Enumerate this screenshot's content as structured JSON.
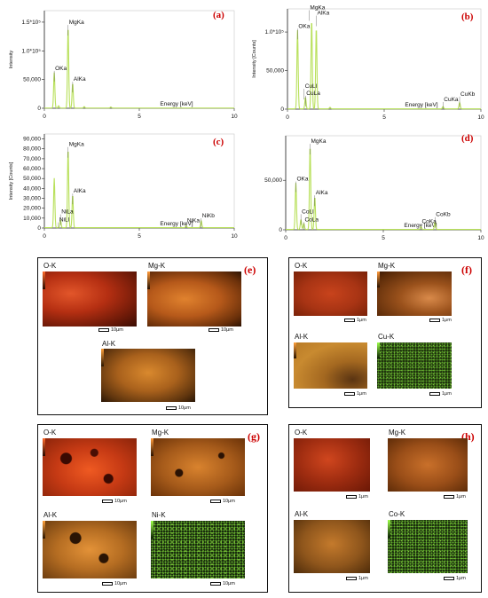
{
  "chart_data": [
    {
      "type": "line",
      "panel": "(a)",
      "xlabel": "Energy [keV]",
      "ylabel": "Intensity",
      "xlim": [
        0,
        10
      ],
      "ylim": [
        0,
        170000
      ],
      "yticks": [
        {
          "v": 0,
          "t": "0"
        },
        {
          "v": 50000,
          "t": "50,000"
        },
        {
          "v": 100000,
          "t": "1.0*10⁵"
        },
        {
          "v": 150000,
          "t": "1.5*10⁵"
        }
      ],
      "xticks": [
        {
          "v": 0,
          "t": "0"
        },
        {
          "v": 5,
          "t": "5"
        },
        {
          "v": 10,
          "t": "10"
        }
      ],
      "peaks": [
        [
          0.52,
          62000
        ],
        [
          1.25,
          142000
        ],
        [
          1.49,
          43000
        ],
        [
          0.75,
          4000
        ],
        [
          2.1,
          2500
        ],
        [
          3.5,
          1800
        ]
      ],
      "labels": [
        {
          "t": "MgKa",
          "x": 1.25,
          "y": 142000
        },
        {
          "t": "OKa",
          "x": 0.52,
          "y": 62000
        },
        {
          "t": "AlKa",
          "x": 1.49,
          "y": 43000
        }
      ]
    },
    {
      "type": "line",
      "panel": "(b)",
      "xlabel": "Energy [keV]",
      "ylabel": "Intensity [Counts]",
      "xlim": [
        0,
        10
      ],
      "ylim": [
        0,
        130000
      ],
      "yticks": [
        {
          "v": 0,
          "t": "0"
        },
        {
          "v": 50000,
          "t": "50,000"
        },
        {
          "v": 100000,
          "t": "1.0*10⁵"
        }
      ],
      "xticks": [
        {
          "v": 0,
          "t": "0"
        },
        {
          "v": 5,
          "t": "5"
        },
        {
          "v": 10,
          "t": "10"
        }
      ],
      "peaks": [
        [
          0.52,
          102000
        ],
        [
          0.93,
          15000
        ],
        [
          1.25,
          116000
        ],
        [
          1.49,
          106000
        ],
        [
          8.04,
          3000
        ],
        [
          8.9,
          8000
        ],
        [
          2.2,
          2000
        ]
      ],
      "labels": [
        {
          "t": "MgKa",
          "x": 1.12,
          "y": 126000
        },
        {
          "t": "AlKa",
          "x": 1.49,
          "y": 119000
        },
        {
          "t": "OKa",
          "x": 0.52,
          "y": 102000
        },
        {
          "t": "CuLl",
          "x": 0.86,
          "y": 24000
        },
        {
          "t": "CuLa",
          "x": 0.93,
          "y": 15000
        },
        {
          "t": "CuKa",
          "x": 8.04,
          "y": 7000
        },
        {
          "t": "CuKb",
          "x": 8.9,
          "y": 14000
        }
      ]
    },
    {
      "type": "line",
      "panel": "(c)",
      "xlabel": "Energy [keV]",
      "ylabel": "Intensity [Counts]",
      "xlim": [
        0,
        10
      ],
      "ylim": [
        0,
        95000
      ],
      "yticks": [
        {
          "v": 0,
          "t": "0"
        },
        {
          "v": 10000,
          "t": "10,000"
        },
        {
          "v": 20000,
          "t": "20,000"
        },
        {
          "v": 30000,
          "t": "30,000"
        },
        {
          "v": 40000,
          "t": "40,000"
        },
        {
          "v": 50000,
          "t": "50,000"
        },
        {
          "v": 60000,
          "t": "60,000"
        },
        {
          "v": 70000,
          "t": "70,000"
        },
        {
          "v": 80000,
          "t": "80,000"
        },
        {
          "v": 90000,
          "t": "90,000"
        }
      ],
      "xticks": [
        {
          "v": 0,
          "t": "0"
        },
        {
          "v": 5,
          "t": "5"
        },
        {
          "v": 10,
          "t": "10"
        }
      ],
      "peaks": [
        [
          0.52,
          50000
        ],
        [
          0.85,
          8000
        ],
        [
          1.25,
          80000
        ],
        [
          1.49,
          33000
        ],
        [
          7.47,
          2000
        ],
        [
          8.26,
          7000
        ]
      ],
      "labels": [
        {
          "t": "MgKa",
          "x": 1.25,
          "y": 80000
        },
        {
          "t": "AlKa",
          "x": 1.49,
          "y": 33000
        },
        {
          "t": "NiLa",
          "x": 0.85,
          "y": 12000
        },
        {
          "t": "NiLl",
          "x": 0.74,
          "y": 4000
        },
        {
          "t": "NiKa",
          "x": 7.47,
          "y": 3000
        },
        {
          "t": "NiKb",
          "x": 8.26,
          "y": 8000
        }
      ]
    },
    {
      "type": "line",
      "panel": "(d)",
      "xlabel": "Energy [keV]",
      "ylabel": "",
      "xlim": [
        0,
        10
      ],
      "ylim": [
        0,
        95000
      ],
      "yticks": [
        {
          "v": 0,
          "t": "0"
        },
        {
          "v": 50000,
          "t": "50,000"
        }
      ],
      "xticks": [
        {
          "v": 0,
          "t": "0"
        },
        {
          "v": 5,
          "t": "5"
        },
        {
          "v": 10,
          "t": "10"
        }
      ],
      "peaks": [
        [
          0.52,
          47000
        ],
        [
          0.78,
          10000
        ],
        [
          0.93,
          6000
        ],
        [
          1.25,
          85000
        ],
        [
          1.49,
          33000
        ],
        [
          6.93,
          3000
        ],
        [
          7.65,
          8000
        ]
      ],
      "labels": [
        {
          "t": "MgKa",
          "x": 1.25,
          "y": 85000
        },
        {
          "t": "OKa",
          "x": 0.52,
          "y": 47000
        },
        {
          "t": "AlKa",
          "x": 1.49,
          "y": 33000
        },
        {
          "t": "CoLl",
          "x": 0.78,
          "y": 14000
        },
        {
          "t": "CoLa",
          "x": 0.93,
          "y": 6000
        },
        {
          "t": "CoKa",
          "x": 6.93,
          "y": 4000
        },
        {
          "t": "CoKb",
          "x": 7.65,
          "y": 11000
        }
      ]
    }
  ],
  "maps": {
    "e": {
      "letter": "(e)",
      "o": "O-K",
      "mg": "Mg-K",
      "al": "Al-K",
      "scale": "10μm"
    },
    "f": {
      "letter": "(f)",
      "o": "O-K",
      "mg": "Mg-K",
      "al": "Al-K",
      "x": "Cu-K",
      "scale": "1μm"
    },
    "g": {
      "letter": "(g)",
      "o": "O-K",
      "mg": "Mg-K",
      "al": "Al-K",
      "x": "Ni-K",
      "scale": "10μm"
    },
    "h": {
      "letter": "(h)",
      "o": "O-K",
      "mg": "Mg-K",
      "al": "Al-K",
      "x": "Co-K",
      "scale": "1μm"
    }
  },
  "colors": {
    "spectrum": "#b8e05a",
    "oxygen": "#d23a16",
    "magnesium": "#c9651c",
    "aluminium": "#cc7f1e",
    "dopant": "#5aa02a",
    "letter": "#cc0000"
  }
}
